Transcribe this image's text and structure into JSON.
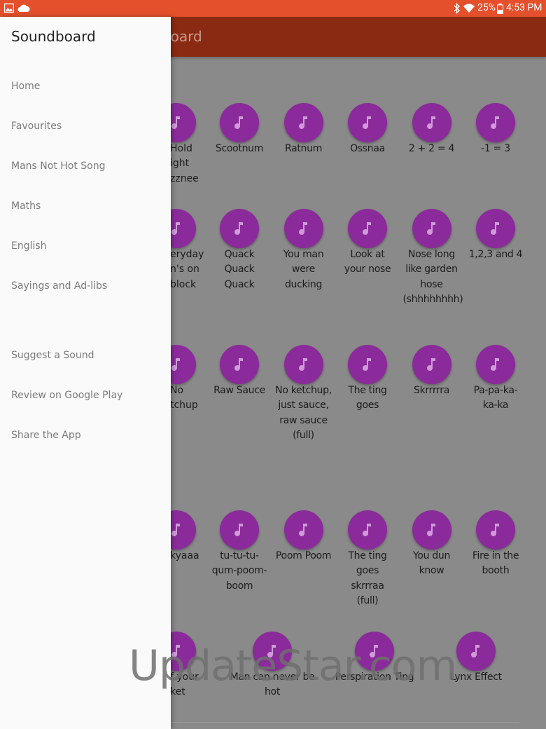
{
  "status_bar": {
    "battery": "25%",
    "time": "4:53 PM"
  },
  "app_bar": {
    "title": "Soundboard"
  },
  "drawer": {
    "title": "Soundboard",
    "items": [
      "Home",
      "Favourites",
      "Mans Not Hot Song",
      "Maths",
      "English",
      "Sayings and Ad-libs"
    ],
    "secondary_items": [
      "Suggest a Sound",
      "Review on Google Play",
      "Share the App"
    ]
  },
  "grid": {
    "rows": [
      {
        "partial": [
          "Hold",
          "ight",
          "zznee"
        ],
        "buttons": [
          "Scootnum",
          "Ratnum",
          "Ossnaa",
          "2 + 2 = 4",
          "-1 = 3"
        ]
      },
      {
        "partial": [
          "eryday",
          "n's on",
          "block"
        ],
        "buttons": [
          "Quack Quack Quack",
          "You man were ducking",
          "Look at your nose",
          "Nose long like garden hose (shhhhhhhh)",
          "1,2,3 and 4"
        ]
      },
      {
        "partial": [
          "No",
          "tchup"
        ],
        "buttons": [
          "Raw Sauce",
          "No ketchup, just sauce, raw sauce (full)",
          "The ting goes",
          "Skrrrrra",
          "Pa-pa-ka-ka-ka"
        ]
      },
      {
        "partial": [
          "kyaaa"
        ],
        "buttons": [
          "tu-tu-tu-qum-poom-boom",
          "Poom Poom",
          "The ting goes skrrraa (full)",
          "You dun know",
          "Fire in the booth"
        ]
      },
      {
        "partial": [
          "f your",
          "ket"
        ],
        "buttons": [
          "Man can never be hot",
          "Perspiration Ting",
          "Lynx Effect"
        ]
      }
    ]
  },
  "watermark": "UpdateStar.com"
}
